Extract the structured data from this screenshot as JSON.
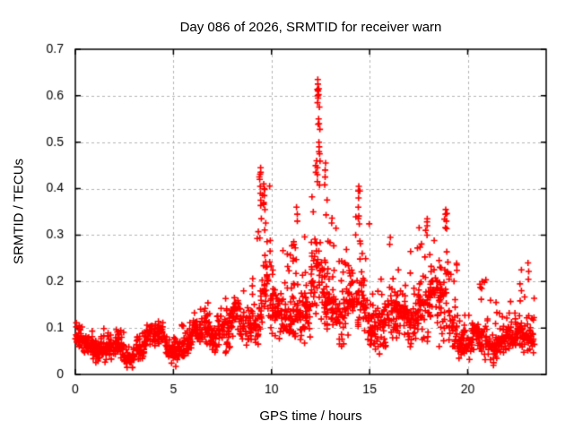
{
  "colors": {
    "background": "#ffffff",
    "border": "#000000",
    "grid": "#b3b3b3",
    "text": "#000000",
    "marker_red": "#ff0000"
  },
  "chart_data": {
    "type": "scatter",
    "title": "Day 086 of 2026, SRMTID for receiver warn",
    "xlabel": "GPS time / hours",
    "ylabel": "SRMTID / TECUs",
    "xlim": [
      0,
      24
    ],
    "ylim": [
      0,
      0.7
    ],
    "xticks": [
      0,
      5,
      10,
      15,
      20
    ],
    "yticks": [
      0,
      0.1,
      0.2,
      0.3,
      0.4,
      0.5,
      0.6,
      0.7
    ],
    "grid": true,
    "legend": "none",
    "marker": {
      "shape": "plus",
      "color": "#ff0000",
      "size": 7
    },
    "x_units": "hours",
    "y_units": "TECUs",
    "data_extent": {
      "t_start": 0.0,
      "t_end": 23.4,
      "v_min": 0.01,
      "v_max": 0.635
    },
    "seed": 86,
    "envelope_bins": [
      [
        0.0,
        0.5,
        0.03,
        0.065,
        0.115,
        40
      ],
      [
        0.5,
        1.0,
        0.03,
        0.06,
        0.1,
        40
      ],
      [
        1.0,
        1.5,
        0.03,
        0.065,
        0.115,
        40
      ],
      [
        1.5,
        2.0,
        0.02,
        0.05,
        0.095,
        40
      ],
      [
        2.0,
        2.5,
        0.02,
        0.055,
        0.1,
        40
      ],
      [
        2.5,
        3.0,
        0.015,
        0.04,
        0.075,
        40
      ],
      [
        3.0,
        3.5,
        0.03,
        0.06,
        0.1,
        40
      ],
      [
        3.5,
        4.0,
        0.04,
        0.075,
        0.125,
        40
      ],
      [
        4.0,
        4.5,
        0.045,
        0.08,
        0.13,
        40
      ],
      [
        4.5,
        5.0,
        0.03,
        0.06,
        0.105,
        40
      ],
      [
        5.0,
        5.5,
        0.02,
        0.055,
        0.11,
        38
      ],
      [
        5.5,
        6.0,
        0.03,
        0.07,
        0.125,
        38
      ],
      [
        6.0,
        6.5,
        0.05,
        0.09,
        0.145,
        38
      ],
      [
        6.5,
        7.0,
        0.05,
        0.1,
        0.16,
        38
      ],
      [
        7.0,
        7.5,
        0.05,
        0.095,
        0.145,
        38
      ],
      [
        7.5,
        8.0,
        0.05,
        0.1,
        0.165,
        38
      ],
      [
        8.0,
        8.5,
        0.055,
        0.11,
        0.19,
        38
      ],
      [
        8.5,
        9.0,
        0.05,
        0.1,
        0.185,
        38
      ],
      [
        9.0,
        9.5,
        0.06,
        0.14,
        0.42,
        42
      ],
      [
        9.5,
        10.0,
        0.08,
        0.17,
        0.42,
        44
      ],
      [
        10.0,
        10.5,
        0.05,
        0.115,
        0.26,
        40
      ],
      [
        10.5,
        11.0,
        0.06,
        0.125,
        0.33,
        40
      ],
      [
        11.0,
        11.5,
        0.06,
        0.14,
        0.36,
        42
      ],
      [
        11.5,
        12.0,
        0.05,
        0.135,
        0.33,
        42
      ],
      [
        12.0,
        12.5,
        0.08,
        0.19,
        0.47,
        46
      ],
      [
        12.5,
        13.0,
        0.08,
        0.175,
        0.46,
        46
      ],
      [
        13.0,
        13.5,
        0.07,
        0.15,
        0.35,
        42
      ],
      [
        13.5,
        14.0,
        0.06,
        0.13,
        0.3,
        40
      ],
      [
        14.0,
        14.5,
        0.06,
        0.135,
        0.37,
        40
      ],
      [
        14.5,
        15.0,
        0.06,
        0.13,
        0.34,
        40
      ],
      [
        15.0,
        15.5,
        0.05,
        0.115,
        0.22,
        40
      ],
      [
        15.5,
        16.0,
        0.05,
        0.115,
        0.29,
        40
      ],
      [
        16.0,
        16.5,
        0.05,
        0.11,
        0.26,
        40
      ],
      [
        16.5,
        17.0,
        0.055,
        0.12,
        0.22,
        40
      ],
      [
        17.0,
        17.5,
        0.06,
        0.125,
        0.28,
        40
      ],
      [
        17.5,
        18.0,
        0.065,
        0.15,
        0.33,
        42
      ],
      [
        18.0,
        18.5,
        0.06,
        0.14,
        0.3,
        42
      ],
      [
        18.5,
        19.0,
        0.07,
        0.16,
        0.35,
        42
      ],
      [
        19.0,
        19.5,
        0.06,
        0.125,
        0.28,
        40
      ],
      [
        19.5,
        20.0,
        0.03,
        0.065,
        0.14,
        40
      ],
      [
        20.0,
        20.5,
        0.03,
        0.07,
        0.19,
        40
      ],
      [
        20.5,
        21.0,
        0.035,
        0.075,
        0.21,
        40
      ],
      [
        21.0,
        21.5,
        0.03,
        0.07,
        0.18,
        38
      ],
      [
        21.5,
        22.0,
        0.03,
        0.07,
        0.14,
        38
      ],
      [
        22.0,
        22.5,
        0.03,
        0.075,
        0.17,
        38
      ],
      [
        22.5,
        23.0,
        0.04,
        0.08,
        0.185,
        38
      ],
      [
        23.0,
        23.4,
        0.04,
        0.09,
        0.18,
        32
      ]
    ],
    "peak_columns": [
      {
        "t": 9.42,
        "values": [
          0.445,
          0.435,
          0.42,
          0.405,
          0.39,
          0.375
        ]
      },
      {
        "t": 9.62,
        "values": [
          0.41,
          0.4,
          0.385,
          0.37
        ]
      },
      {
        "t": 11.3,
        "values": [
          0.36,
          0.345,
          0.33
        ]
      },
      {
        "t": 12.38,
        "values": [
          0.635,
          0.625,
          0.615,
          0.61,
          0.6,
          0.595,
          0.585
        ]
      },
      {
        "t": 12.42,
        "values": [
          0.55,
          0.54,
          0.5,
          0.49,
          0.475
        ]
      },
      {
        "t": 12.3,
        "values": [
          0.46,
          0.445,
          0.43,
          0.415
        ]
      },
      {
        "t": 12.75,
        "values": [
          0.455,
          0.44,
          0.425
        ]
      },
      {
        "t": 14.45,
        "values": [
          0.405,
          0.395,
          0.38,
          0.36
        ]
      },
      {
        "t": 16.05,
        "values": [
          0.295,
          0.28
        ]
      },
      {
        "t": 17.95,
        "values": [
          0.335,
          0.32,
          0.3
        ]
      },
      {
        "t": 18.9,
        "values": [
          0.355,
          0.345,
          0.33
        ]
      },
      {
        "t": 20.7,
        "values": [
          0.2,
          0.185
        ]
      },
      {
        "t": 22.7,
        "values": [
          0.225,
          0.195
        ]
      },
      {
        "t": 23.1,
        "values": [
          0.24,
          0.205
        ]
      }
    ]
  }
}
